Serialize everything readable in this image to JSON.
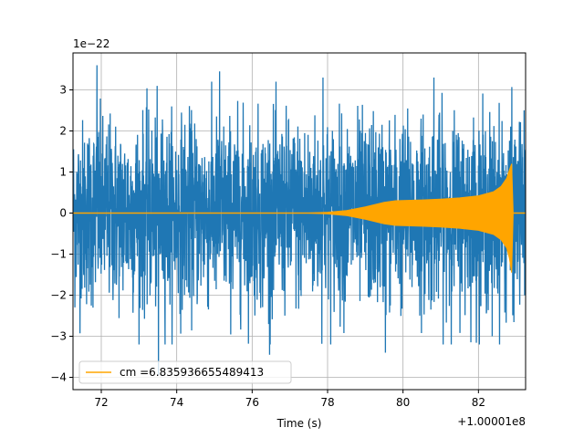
{
  "chart_data": {
    "type": "line",
    "title": "",
    "xlabel": "Time (s)",
    "ylabel": "",
    "x_offset_label": "+1.00001e8",
    "y_scale_label": "1e−22",
    "xlim": [
      71.25,
      83.25
    ],
    "ylim": [
      -4.3,
      3.9
    ],
    "x_ticks": [
      72,
      74,
      76,
      78,
      80,
      82
    ],
    "x_tick_labels": [
      "72",
      "74",
      "76",
      "78",
      "80",
      "82"
    ],
    "y_ticks": [
      -4,
      -3,
      -2,
      -1,
      0,
      1,
      2,
      3
    ],
    "y_tick_labels": [
      "−4",
      "−3",
      "−2",
      "−1",
      "0",
      "1",
      "2",
      "3"
    ],
    "grid": true,
    "legend_position": "lower-left",
    "series": [
      {
        "name": "",
        "kind": "noise",
        "color": "#1f77b4",
        "typical_amplitude": 1.8,
        "peak_values": [
          3.6,
          -3.95,
          3.45,
          -3.45,
          3.3,
          -3.4,
          3.3,
          -3.0
        ]
      },
      {
        "name": "cm =6.835936655489413",
        "kind": "chirp-envelope",
        "color": "#ffa500",
        "x": [
          71.25,
          77.5,
          78.0,
          78.5,
          79.0,
          79.5,
          79.8,
          80.5,
          81.0,
          81.5,
          82.0,
          82.4,
          82.6,
          82.75,
          82.82,
          82.88,
          82.92,
          83.25
        ],
        "upper": [
          0.0,
          0.0,
          0.02,
          0.06,
          0.15,
          0.26,
          0.3,
          0.32,
          0.34,
          0.37,
          0.42,
          0.52,
          0.65,
          0.85,
          1.05,
          1.2,
          0.0,
          0.0
        ],
        "lower": [
          0.0,
          0.0,
          -0.02,
          -0.06,
          -0.15,
          -0.26,
          -0.3,
          -0.32,
          -0.34,
          -0.37,
          -0.42,
          -0.52,
          -0.65,
          -0.85,
          -1.1,
          -1.45,
          0.0,
          0.0
        ]
      }
    ]
  }
}
